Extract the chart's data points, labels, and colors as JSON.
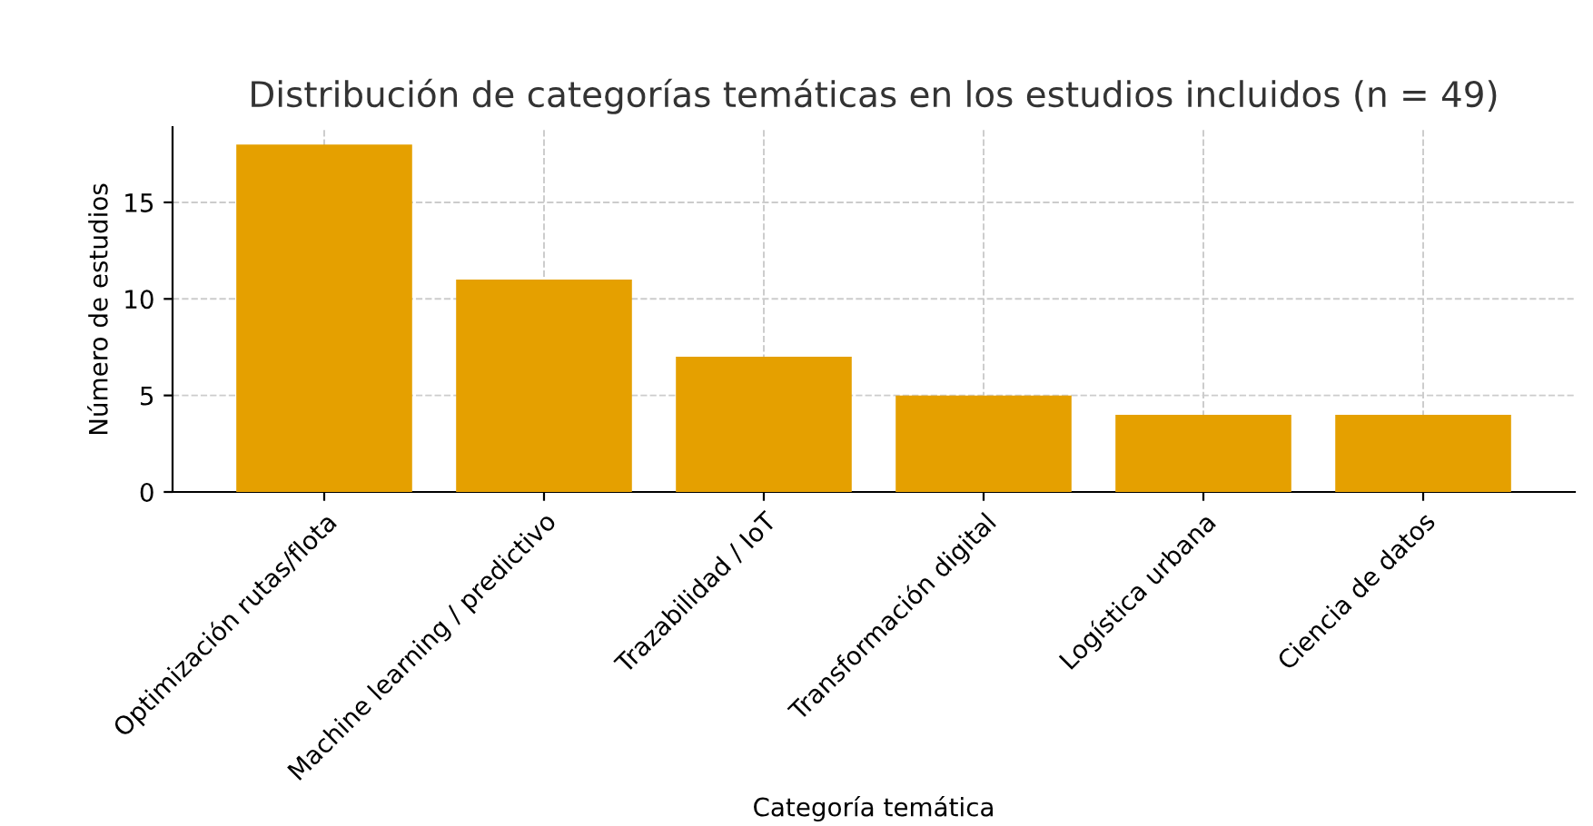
{
  "chart_data": {
    "type": "bar",
    "title": "Distribución de categorías temáticas en los estudios incluidos (n = 49)",
    "xlabel": "Categoría temática",
    "ylabel": "Número de estudios",
    "categories": [
      "Optimización rutas/flota",
      "Machine learning / predictivo",
      "Trazabilidad / IoT",
      "Transformación digital",
      "Logística urbana",
      "Ciencia de datos"
    ],
    "values": [
      18,
      11,
      7,
      5,
      4,
      4
    ],
    "color": "#e5a000",
    "ylim": [
      0,
      18.9
    ],
    "yticks": [
      0,
      5,
      10,
      15
    ],
    "grid": true
  }
}
